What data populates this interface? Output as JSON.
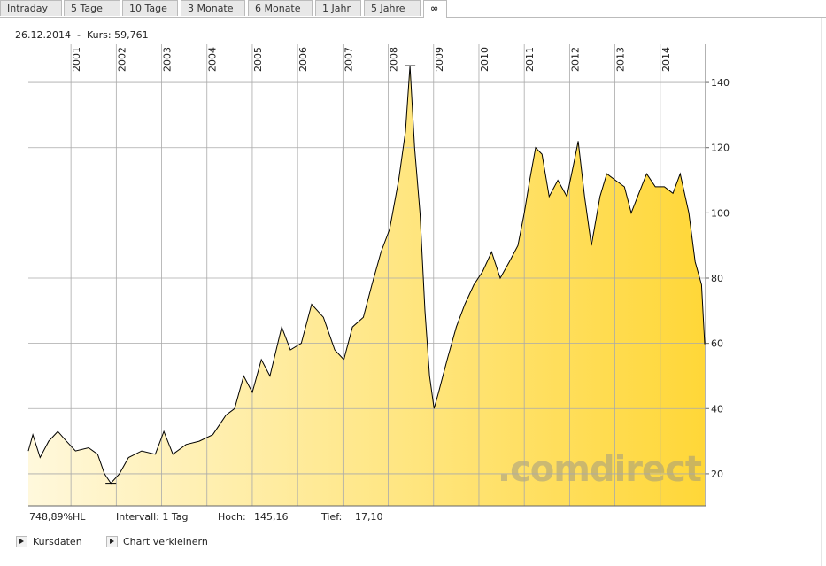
{
  "tabs": [
    "Intraday",
    "5 Tage",
    "10 Tage",
    "3 Monate",
    "6 Monate",
    "1 Jahr",
    "5 Jahre",
    "∞"
  ],
  "header": {
    "date": "26.12.2014",
    "separator": "-",
    "price_label": "Kurs:",
    "price": "59,761"
  },
  "footer": {
    "performance": "748,89%HL",
    "interval": "Intervall: 1 Tag",
    "high_label": "Hoch:",
    "high": "145,16",
    "low_label": "Tief:",
    "low": "17,10"
  },
  "buttons": [
    "Kursdaten",
    "Chart verkleinern"
  ],
  "chart_data": {
    "type": "area",
    "watermark": ".comdirect",
    "line_color": "#000000",
    "fill_colors": [
      "#fff8dc",
      "#ffd738"
    ],
    "x": [
      2000.06,
      2000.16,
      2000.32,
      2000.51,
      2000.71,
      2000.9,
      2001.1,
      2001.39,
      2001.59,
      2001.74,
      2001.88,
      2002.07,
      2002.27,
      2002.56,
      2002.86,
      2003.05,
      2003.25,
      2003.54,
      2003.83,
      2004.13,
      2004.42,
      2004.61,
      2004.81,
      2005.0,
      2005.2,
      2005.39,
      2005.65,
      2005.84,
      2006.08,
      2006.31,
      2006.57,
      2006.82,
      2007.02,
      2007.21,
      2007.45,
      2007.64,
      2007.84,
      2008.03,
      2008.23,
      2008.38,
      2008.48,
      2008.58,
      2008.7,
      2008.81,
      2008.91,
      2009.01,
      2009.11,
      2009.3,
      2009.5,
      2009.69,
      2009.89,
      2010.08,
      2010.28,
      2010.47,
      2010.67,
      2010.86,
      2011.0,
      2011.12,
      2011.25,
      2011.39,
      2011.55,
      2011.74,
      2011.94,
      2012.09,
      2012.19,
      2012.33,
      2012.48,
      2012.67,
      2012.82,
      2013.01,
      2013.21,
      2013.36,
      2013.5,
      2013.7,
      2013.89,
      2014.09,
      2014.28,
      2014.44,
      2014.63,
      2014.77,
      2014.91,
      2014.98
    ],
    "values": [
      27,
      32,
      25,
      30,
      33,
      30,
      27,
      28,
      26,
      20,
      17.1,
      20,
      25,
      27,
      26,
      33,
      26,
      29,
      30,
      32,
      38,
      40,
      50,
      45,
      55,
      50,
      65,
      58,
      60,
      72,
      68,
      58,
      55,
      65,
      68,
      78,
      88,
      95,
      110,
      125,
      145.16,
      120,
      100,
      70,
      50,
      40,
      45,
      55,
      65,
      72,
      78,
      82,
      88,
      80,
      85,
      90,
      100,
      110,
      120,
      118,
      105,
      110,
      105,
      115,
      122,
      105,
      90,
      105,
      112,
      110,
      108,
      100,
      105,
      112,
      108,
      108,
      106,
      112,
      100,
      85,
      78,
      59.761
    ],
    "xlim": [
      2000.06,
      2015.0
    ],
    "xticks": [
      2001,
      2002,
      2003,
      2004,
      2005,
      2006,
      2007,
      2008,
      2009,
      2010,
      2011,
      2012,
      2013,
      2014
    ],
    "ylim": [
      10.2,
      151.7
    ],
    "yticks": [
      20,
      40,
      60,
      80,
      100,
      120,
      140
    ],
    "grid": true
  }
}
